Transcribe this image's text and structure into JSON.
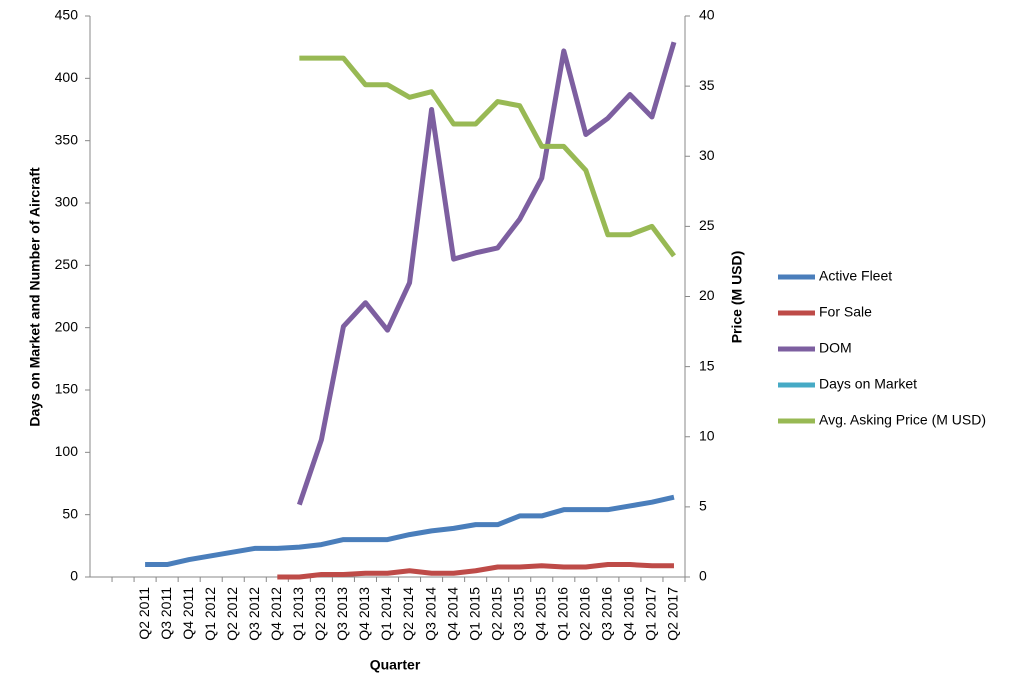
{
  "chart_data": {
    "type": "line",
    "xlabel": "Quarter",
    "ylabel": "Days on Market and Number of Aircraft",
    "y2label": "Price (M USD)",
    "categories": [
      null,
      null,
      "Q2 2011",
      "Q3 2011",
      "Q4 2011",
      "Q1 2012",
      "Q2 2012",
      "Q3 2012",
      "Q4 2012",
      "Q1 2013",
      "Q2 2013",
      "Q3 2013",
      "Q4 2013",
      "Q1 2014",
      "Q2 2014",
      "Q3 2014",
      "Q4 2014",
      "Q1 2015",
      "Q2 2015",
      "Q3 2015",
      "Q4 2015",
      "Q1 2016",
      "Q2 2016",
      "Q3 2016",
      "Q4 2016",
      "Q1 2017",
      "Q2 2017"
    ],
    "series": [
      {
        "name": "Active Fleet",
        "color": "#4a7ebb",
        "values": [
          null,
          null,
          10,
          10,
          14,
          17,
          20,
          23,
          23,
          24,
          26,
          30,
          30,
          30,
          34,
          37,
          39,
          42,
          42,
          49,
          49,
          54,
          54,
          54,
          57,
          60,
          64
        ]
      },
      {
        "name": "For Sale",
        "color": "#be4b48",
        "values": [
          null,
          null,
          null,
          null,
          null,
          null,
          null,
          null,
          0,
          0,
          2,
          2,
          3,
          3,
          5,
          3,
          3,
          5,
          8,
          8,
          9,
          8,
          8,
          10,
          10,
          9,
          9
        ]
      },
      {
        "name": "DOM",
        "color": "#7d5fa0",
        "values": [
          null,
          null,
          null,
          null,
          null,
          null,
          null,
          null,
          null,
          58,
          110,
          201,
          220,
          198,
          236,
          375,
          255,
          260,
          264,
          287,
          320,
          422,
          355,
          368,
          387,
          369,
          429
        ]
      },
      {
        "name": "Days on Market",
        "color": "#46aac5",
        "values": [
          null,
          null,
          null,
          null,
          null,
          null,
          null,
          null,
          null,
          null,
          null,
          null,
          null,
          null,
          null,
          null,
          null,
          null,
          null,
          null,
          null,
          null,
          null,
          null,
          null,
          null,
          null
        ]
      },
      {
        "name": "Avg. Asking Price (M USD)",
        "color": "#98b954",
        "axis": "y2",
        "values": [
          null,
          null,
          null,
          null,
          null,
          null,
          null,
          null,
          null,
          37,
          37,
          37,
          35.1,
          35.1,
          34.2,
          34.6,
          32.3,
          32.3,
          33.9,
          33.6,
          30.7,
          30.7,
          29,
          24.4,
          24.4,
          25,
          22.9
        ]
      }
    ],
    "ylim": [
      0,
      450
    ],
    "yticks": [
      0,
      50,
      100,
      150,
      200,
      250,
      300,
      350,
      400,
      450
    ],
    "y2lim": [
      0,
      40
    ],
    "y2ticks": [
      0,
      5,
      10,
      15,
      20,
      25,
      30,
      35,
      40
    ],
    "legend": "right"
  }
}
